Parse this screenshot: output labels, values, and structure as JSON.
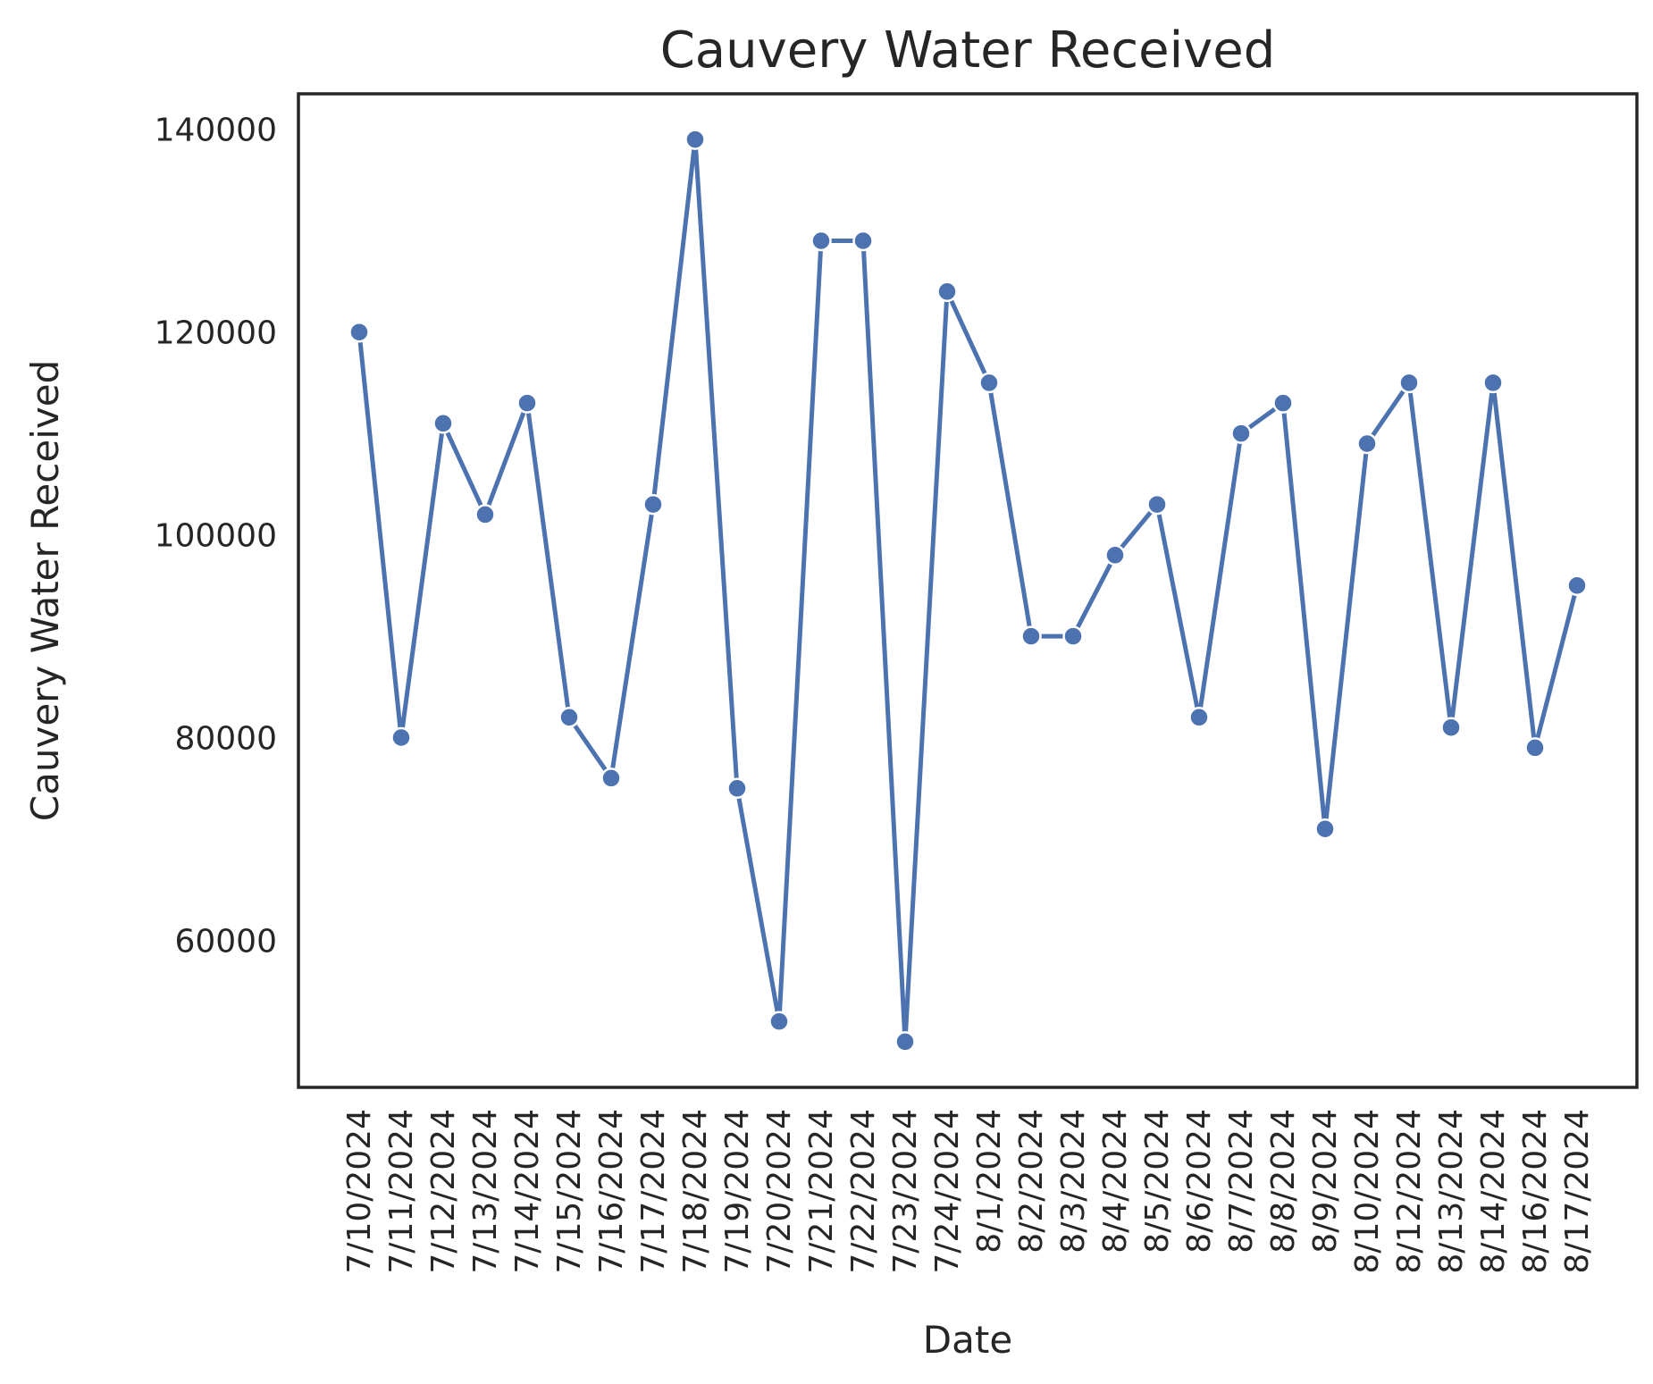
{
  "chart_data": {
    "type": "line",
    "title": "Cauvery Water Received",
    "xlabel": "Date",
    "ylabel": "Cauvery Water Received",
    "grid": false,
    "legend": "none",
    "color": "#4c72b0",
    "ylim": [
      45500,
      143500
    ],
    "yticks": [
      60000,
      80000,
      100000,
      120000,
      140000
    ],
    "categories": [
      "7/10/2024",
      "7/11/2024",
      "7/12/2024",
      "7/13/2024",
      "7/14/2024",
      "7/15/2024",
      "7/16/2024",
      "7/17/2024",
      "7/18/2024",
      "7/19/2024",
      "7/20/2024",
      "7/21/2024",
      "7/22/2024",
      "7/23/2024",
      "7/24/2024",
      "8/1/2024",
      "8/2/2024",
      "8/3/2024",
      "8/4/2024",
      "8/5/2024",
      "8/6/2024",
      "8/7/2024",
      "8/8/2024",
      "8/9/2024",
      "8/10/2024",
      "8/12/2024",
      "8/13/2024",
      "8/14/2024",
      "8/16/2024",
      "8/17/2024"
    ],
    "values": [
      120000,
      80000,
      111000,
      102000,
      113000,
      82000,
      76000,
      103000,
      139000,
      75000,
      52000,
      129000,
      129000,
      50000,
      124000,
      115000,
      90000,
      90000,
      98000,
      103000,
      82000,
      110000,
      113000,
      71000,
      109000,
      115000,
      81000,
      115000,
      79000,
      95000
    ]
  }
}
